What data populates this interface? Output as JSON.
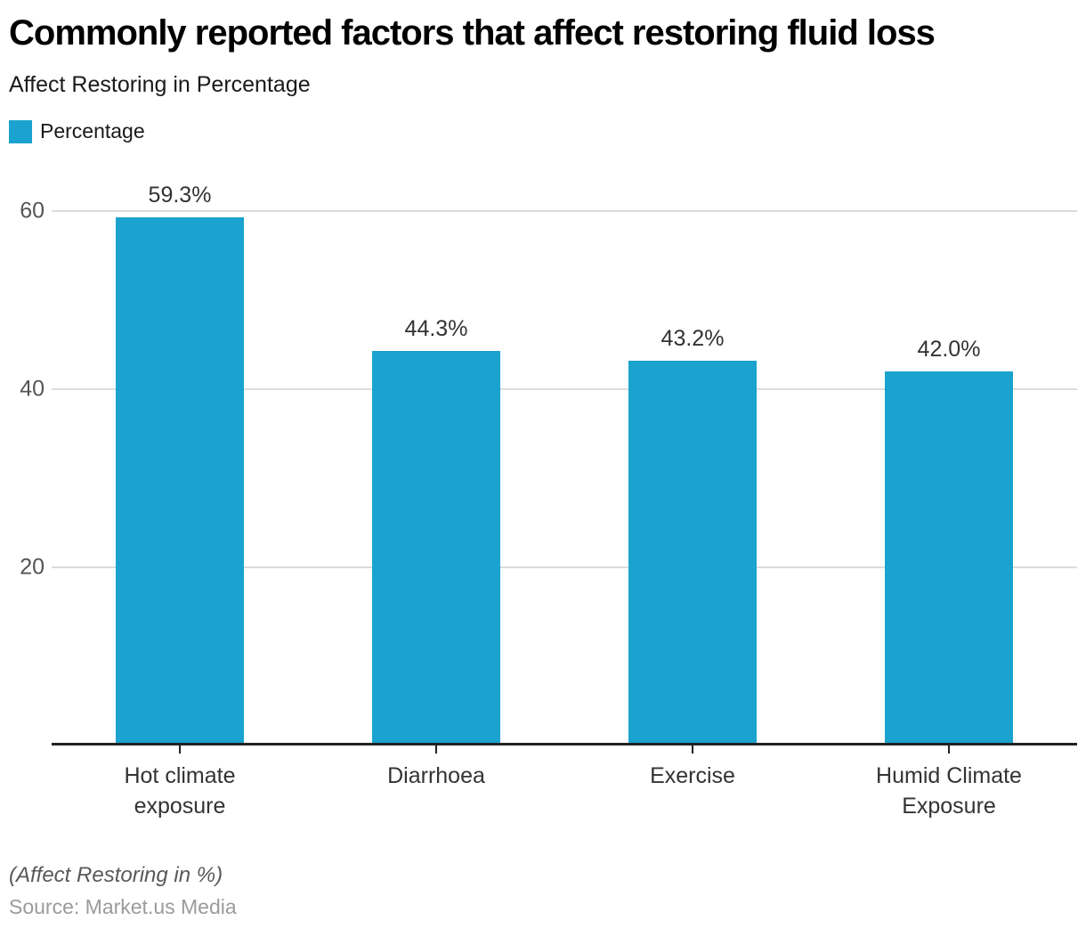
{
  "header": {
    "title": "Commonly reported factors that affect restoring fluid loss",
    "subtitle": "Affect Restoring in Percentage"
  },
  "legend": {
    "items": [
      {
        "label": "Percentage",
        "color": "#1aa3ce"
      }
    ]
  },
  "chart_data": {
    "type": "bar",
    "title": "Commonly reported factors that affect restoring fluid loss",
    "subtitle": "Affect Restoring in Percentage",
    "categories": [
      "Hot climate exposure",
      "Diarrhoea",
      "Exercise",
      "Humid Climate Exposure"
    ],
    "series": [
      {
        "name": "Percentage",
        "values": [
          59.3,
          44.3,
          43.2,
          42.0
        ]
      }
    ],
    "value_labels": [
      "59.3%",
      "44.3%",
      "43.2%",
      "42.0%"
    ],
    "yticks": [
      20,
      40,
      60
    ],
    "ylim": [
      0,
      65
    ],
    "grid": "horizontal",
    "legend_position": "top-left",
    "bar_color": "#1aa3ce",
    "axis_color": "#222222",
    "gridline_color": "#dcdcdc",
    "xlabel": "",
    "ylabel": ""
  },
  "footer": {
    "note": "(Affect Restoring in %)",
    "source": "Source: Market.us Media"
  }
}
